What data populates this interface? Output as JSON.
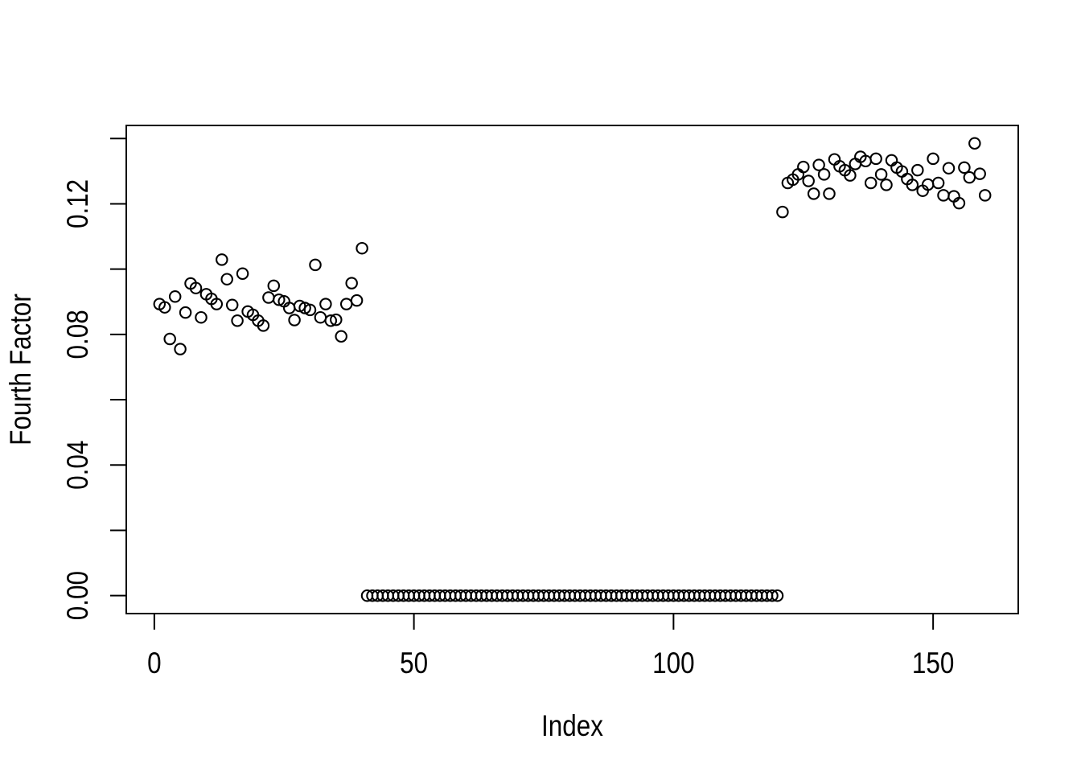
{
  "figure": {
    "background_color": "#ffffff",
    "line_color": "#000000"
  },
  "chart_data": {
    "type": "scatter",
    "title": "",
    "xlabel": "Index",
    "ylabel": "Fourth Factor",
    "marker": "open-circle",
    "grid": false,
    "legend": null,
    "xlim": [
      -5.4,
      166.4
    ],
    "ylim": [
      -0.0055,
      0.144
    ],
    "x_ticks": [
      0,
      50,
      100,
      150
    ],
    "x_tick_labels": [
      "0",
      "50",
      "100",
      "150"
    ],
    "y_ticks": [
      0,
      0.02,
      0.04,
      0.06,
      0.08,
      0.1,
      0.12,
      0.14
    ],
    "y_tick_labels": [
      "0.00",
      "",
      "0.04",
      "",
      "0.08",
      "",
      "0.12",
      ""
    ],
    "series": [
      {
        "name": "fourth-factor",
        "x": {
          "from": 1,
          "to": 160,
          "step": 1
        },
        "y": [
          0.0893,
          0.0883,
          0.0786,
          0.0916,
          0.0755,
          0.0867,
          0.0956,
          0.0942,
          0.0852,
          0.0923,
          0.0909,
          0.0893,
          0.1029,
          0.0969,
          0.089,
          0.0842,
          0.0986,
          0.087,
          0.086,
          0.0842,
          0.0827,
          0.0913,
          0.0949,
          0.0906,
          0.0901,
          0.0881,
          0.0844,
          0.0887,
          0.0881,
          0.0875,
          0.1013,
          0.0852,
          0.0893,
          0.0842,
          0.0845,
          0.0794,
          0.0893,
          0.0957,
          0.0904,
          0.1064,
          0,
          0,
          0,
          0,
          0,
          0,
          0,
          0,
          0,
          0,
          0,
          0,
          0,
          0,
          0,
          0,
          0,
          0,
          0,
          0,
          0,
          0,
          0,
          0,
          0,
          0,
          0,
          0,
          0,
          0,
          0,
          0,
          0,
          0,
          0,
          0,
          0,
          0,
          0,
          0,
          0,
          0,
          0,
          0,
          0,
          0,
          0,
          0,
          0,
          0,
          0,
          0,
          0,
          0,
          0,
          0,
          0,
          0,
          0,
          0,
          0,
          0,
          0,
          0,
          0,
          0,
          0,
          0,
          0,
          0,
          0,
          0,
          0,
          0,
          0,
          0,
          0,
          0,
          0,
          0,
          0.1175,
          0.1264,
          0.1274,
          0.129,
          0.1313,
          0.127,
          0.1231,
          0.1319,
          0.129,
          0.1231,
          0.1336,
          0.1315,
          0.1303,
          0.1287,
          0.1322,
          0.1344,
          0.1331,
          0.1264,
          0.1338,
          0.129,
          0.1258,
          0.1333,
          0.1311,
          0.1299,
          0.1276,
          0.1258,
          0.1303,
          0.124,
          0.1259,
          0.1338,
          0.1264,
          0.1226,
          0.1309,
          0.1223,
          0.1202,
          0.1311,
          0.1281,
          0.1385,
          0.1292,
          0.1226
        ]
      }
    ]
  }
}
